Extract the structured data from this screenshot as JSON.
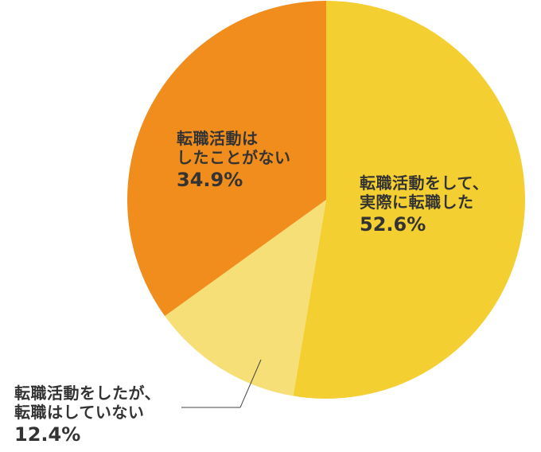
{
  "chart_data": {
    "type": "pie",
    "slices": [
      {
        "label_lines": [
          "転職活動をして、",
          "実際に転職した"
        ],
        "value": 52.6,
        "value_label": "52.6%",
        "color": "#f3cf31"
      },
      {
        "label_lines": [
          "転職活動をしたが、",
          "転職はしていない"
        ],
        "value": 12.4,
        "value_label": "12.4%",
        "color": "#f6df76"
      },
      {
        "label_lines": [
          "転職活動は",
          "したことがない"
        ],
        "value": 34.9,
        "value_label": "34.9%",
        "color": "#f08d1d"
      }
    ],
    "start": "12 o'clock",
    "direction": "clockwise",
    "legend": "none"
  }
}
